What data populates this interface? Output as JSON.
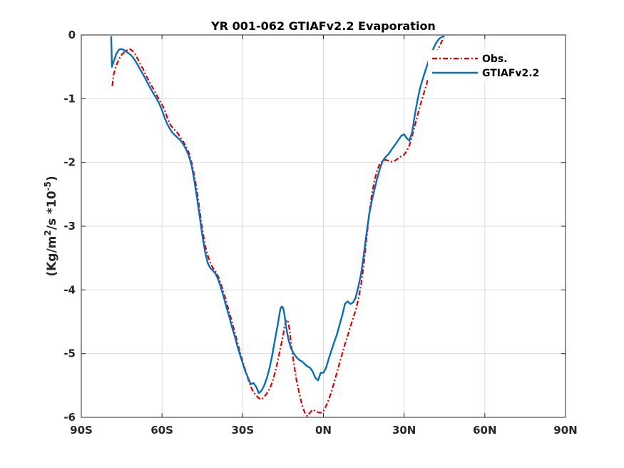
{
  "chart_data": {
    "type": "line",
    "title": "YR 001-062 GTIAFv2.2 Evaporation",
    "xlabel": "",
    "ylabel": {
      "prefix": "(Kg/m",
      "sup1": "2",
      "middle": "/s *10",
      "sup2": "-5",
      "suffix": ")"
    },
    "xlim": [
      -90,
      90
    ],
    "ylim": [
      -6,
      0
    ],
    "xticks": [
      {
        "value": -90,
        "label": "90S"
      },
      {
        "value": -60,
        "label": "60S"
      },
      {
        "value": -30,
        "label": "30S"
      },
      {
        "value": 0,
        "label": "0N"
      },
      {
        "value": 30,
        "label": "30N"
      },
      {
        "value": 60,
        "label": "60N"
      },
      {
        "value": 90,
        "label": "90N"
      }
    ],
    "yticks": [
      {
        "value": 0,
        "label": "0"
      },
      {
        "value": -1,
        "label": "-1"
      },
      {
        "value": -2,
        "label": "-2"
      },
      {
        "value": -3,
        "label": "-3"
      },
      {
        "value": -4,
        "label": "-4"
      },
      {
        "value": -5,
        "label": "-5"
      },
      {
        "value": -6,
        "label": "-6"
      }
    ],
    "grid": true,
    "legend_position": "top-right",
    "series": [
      {
        "name": "Obs.",
        "color": "#d90000",
        "style": "dash-dot",
        "points": [
          [
            -78.5,
            -0.8
          ],
          [
            -78.0,
            -0.62
          ],
          [
            -77.0,
            -0.48
          ],
          [
            -76.0,
            -0.38
          ],
          [
            -75.0,
            -0.31
          ],
          [
            -74.0,
            -0.27
          ],
          [
            -73.0,
            -0.24
          ],
          [
            -72.0,
            -0.22
          ],
          [
            -71.0,
            -0.25
          ],
          [
            -70.0,
            -0.3
          ],
          [
            -69.0,
            -0.38
          ],
          [
            -68.0,
            -0.46
          ],
          [
            -67.0,
            -0.54
          ],
          [
            -66.0,
            -0.63
          ],
          [
            -65.0,
            -0.71
          ],
          [
            -64.0,
            -0.79
          ],
          [
            -63.0,
            -0.86
          ],
          [
            -62.0,
            -0.94
          ],
          [
            -61.0,
            -1.02
          ],
          [
            -60.0,
            -1.09
          ],
          [
            -59.0,
            -1.18
          ],
          [
            -58.0,
            -1.3
          ],
          [
            -57.0,
            -1.4
          ],
          [
            -56.0,
            -1.46
          ],
          [
            -55.0,
            -1.5
          ],
          [
            -54.0,
            -1.55
          ],
          [
            -53.0,
            -1.62
          ],
          [
            -52.0,
            -1.68
          ],
          [
            -51.0,
            -1.76
          ],
          [
            -50.0,
            -1.85
          ],
          [
            -49.0,
            -2.0
          ],
          [
            -48.0,
            -2.2
          ],
          [
            -47.0,
            -2.45
          ],
          [
            -46.0,
            -2.75
          ],
          [
            -45.0,
            -3.05
          ],
          [
            -44.0,
            -3.3
          ],
          [
            -43.0,
            -3.46
          ],
          [
            -42.0,
            -3.58
          ],
          [
            -41.0,
            -3.66
          ],
          [
            -40.0,
            -3.72
          ],
          [
            -39.0,
            -3.8
          ],
          [
            -38.0,
            -3.92
          ],
          [
            -37.0,
            -4.05
          ],
          [
            -36.0,
            -4.2
          ],
          [
            -35.0,
            -4.35
          ],
          [
            -34.0,
            -4.5
          ],
          [
            -33.0,
            -4.66
          ],
          [
            -32.0,
            -4.82
          ],
          [
            -31.0,
            -4.98
          ],
          [
            -30.0,
            -5.12
          ],
          [
            -29.0,
            -5.26
          ],
          [
            -28.0,
            -5.4
          ],
          [
            -27.0,
            -5.52
          ],
          [
            -26.0,
            -5.6
          ],
          [
            -25.0,
            -5.66
          ],
          [
            -24.0,
            -5.7
          ],
          [
            -23.0,
            -5.72
          ],
          [
            -22.0,
            -5.68
          ],
          [
            -21.0,
            -5.62
          ],
          [
            -20.0,
            -5.55
          ],
          [
            -19.0,
            -5.45
          ],
          [
            -18.0,
            -5.3
          ],
          [
            -17.0,
            -5.12
          ],
          [
            -16.0,
            -4.92
          ],
          [
            -15.0,
            -4.72
          ],
          [
            -14.5,
            -4.58
          ],
          [
            -14.0,
            -4.5
          ],
          [
            -13.5,
            -4.47
          ],
          [
            -13.0,
            -4.52
          ],
          [
            -12.5,
            -4.65
          ],
          [
            -12.0,
            -4.85
          ],
          [
            -11.0,
            -5.15
          ],
          [
            -10.0,
            -5.42
          ],
          [
            -9.0,
            -5.62
          ],
          [
            -8.0,
            -5.8
          ],
          [
            -7.0,
            -5.92
          ],
          [
            -6.0,
            -5.98
          ],
          [
            -5.0,
            -5.93
          ],
          [
            -4.0,
            -5.88
          ],
          [
            -3.0,
            -5.9
          ],
          [
            -2.0,
            -5.92
          ],
          [
            -1.0,
            -5.93
          ],
          [
            0.0,
            -5.9
          ],
          [
            1.0,
            -5.82
          ],
          [
            2.0,
            -5.72
          ],
          [
            3.0,
            -5.6
          ],
          [
            4.0,
            -5.45
          ],
          [
            5.0,
            -5.3
          ],
          [
            6.0,
            -5.15
          ],
          [
            7.0,
            -5.0
          ],
          [
            8.0,
            -4.85
          ],
          [
            9.0,
            -4.72
          ],
          [
            10.0,
            -4.58
          ],
          [
            11.0,
            -4.45
          ],
          [
            12.0,
            -4.32
          ],
          [
            13.0,
            -4.15
          ],
          [
            14.0,
            -3.92
          ],
          [
            15.0,
            -3.6
          ],
          [
            16.0,
            -3.2
          ],
          [
            17.0,
            -2.82
          ],
          [
            18.0,
            -2.5
          ],
          [
            19.0,
            -2.28
          ],
          [
            20.0,
            -2.12
          ],
          [
            21.0,
            -2.02
          ],
          [
            22.0,
            -1.98
          ],
          [
            23.0,
            -1.96
          ],
          [
            24.0,
            -1.97
          ],
          [
            25.0,
            -1.99
          ],
          [
            26.0,
            -1.99
          ],
          [
            27.0,
            -1.96
          ],
          [
            28.0,
            -1.93
          ],
          [
            29.0,
            -1.9
          ],
          [
            30.0,
            -1.88
          ],
          [
            31.0,
            -1.82
          ],
          [
            32.0,
            -1.73
          ],
          [
            33.0,
            -1.58
          ],
          [
            34.0,
            -1.42
          ],
          [
            35.0,
            -1.26
          ],
          [
            36.0,
            -1.1
          ],
          [
            37.0,
            -0.96
          ],
          [
            38.0,
            -0.82
          ],
          [
            39.0,
            -0.68
          ],
          [
            40.0,
            -0.55
          ],
          [
            41.0,
            -0.42
          ],
          [
            42.0,
            -0.3
          ],
          [
            43.0,
            -0.19
          ],
          [
            44.0,
            -0.1
          ],
          [
            45.0,
            -0.05
          ]
        ]
      },
      {
        "name": "GTIAFv2.2",
        "color": "#0a6eb4",
        "style": "solid",
        "points": [
          [
            -78.9,
            -0.02
          ],
          [
            -78.6,
            -0.5
          ],
          [
            -78.0,
            -0.42
          ],
          [
            -77.0,
            -0.3
          ],
          [
            -76.0,
            -0.23
          ],
          [
            -75.0,
            -0.22
          ],
          [
            -74.0,
            -0.24
          ],
          [
            -73.0,
            -0.27
          ],
          [
            -72.0,
            -0.3
          ],
          [
            -71.0,
            -0.34
          ],
          [
            -70.0,
            -0.4
          ],
          [
            -69.0,
            -0.47
          ],
          [
            -68.0,
            -0.55
          ],
          [
            -67.0,
            -0.62
          ],
          [
            -66.0,
            -0.7
          ],
          [
            -65.0,
            -0.78
          ],
          [
            -64.0,
            -0.86
          ],
          [
            -63.0,
            -0.93
          ],
          [
            -62.0,
            -1.0
          ],
          [
            -61.0,
            -1.08
          ],
          [
            -60.0,
            -1.18
          ],
          [
            -59.0,
            -1.3
          ],
          [
            -58.0,
            -1.4
          ],
          [
            -57.0,
            -1.48
          ],
          [
            -56.0,
            -1.54
          ],
          [
            -55.0,
            -1.58
          ],
          [
            -54.0,
            -1.62
          ],
          [
            -53.0,
            -1.66
          ],
          [
            -52.0,
            -1.72
          ],
          [
            -51.0,
            -1.8
          ],
          [
            -50.0,
            -1.9
          ],
          [
            -49.0,
            -2.05
          ],
          [
            -48.0,
            -2.28
          ],
          [
            -47.0,
            -2.55
          ],
          [
            -46.0,
            -2.85
          ],
          [
            -45.0,
            -3.15
          ],
          [
            -44.0,
            -3.4
          ],
          [
            -43.0,
            -3.58
          ],
          [
            -42.0,
            -3.66
          ],
          [
            -41.0,
            -3.7
          ],
          [
            -40.0,
            -3.75
          ],
          [
            -39.0,
            -3.85
          ],
          [
            -38.0,
            -3.98
          ],
          [
            -37.0,
            -4.12
          ],
          [
            -36.0,
            -4.28
          ],
          [
            -35.0,
            -4.42
          ],
          [
            -34.0,
            -4.58
          ],
          [
            -33.0,
            -4.72
          ],
          [
            -32.0,
            -4.88
          ],
          [
            -31.0,
            -5.02
          ],
          [
            -30.0,
            -5.15
          ],
          [
            -29.0,
            -5.28
          ],
          [
            -28.0,
            -5.38
          ],
          [
            -27.0,
            -5.48
          ],
          [
            -26.0,
            -5.46
          ],
          [
            -25.0,
            -5.52
          ],
          [
            -24.0,
            -5.62
          ],
          [
            -23.0,
            -5.58
          ],
          [
            -22.0,
            -5.5
          ],
          [
            -21.0,
            -5.38
          ],
          [
            -20.0,
            -5.22
          ],
          [
            -19.0,
            -5.02
          ],
          [
            -18.0,
            -4.78
          ],
          [
            -17.0,
            -4.55
          ],
          [
            -16.5,
            -4.42
          ],
          [
            -16.0,
            -4.3
          ],
          [
            -15.5,
            -4.26
          ],
          [
            -15.0,
            -4.28
          ],
          [
            -14.5,
            -4.38
          ],
          [
            -14.0,
            -4.55
          ],
          [
            -13.0,
            -4.78
          ],
          [
            -12.0,
            -4.92
          ],
          [
            -11.0,
            -5.0
          ],
          [
            -10.0,
            -5.06
          ],
          [
            -9.0,
            -5.1
          ],
          [
            -8.0,
            -5.12
          ],
          [
            -7.0,
            -5.16
          ],
          [
            -6.0,
            -5.2
          ],
          [
            -5.0,
            -5.22
          ],
          [
            -4.0,
            -5.28
          ],
          [
            -3.0,
            -5.38
          ],
          [
            -2.0,
            -5.42
          ],
          [
            -1.0,
            -5.3
          ],
          [
            0.0,
            -5.3
          ],
          [
            1.0,
            -5.22
          ],
          [
            2.0,
            -5.08
          ],
          [
            3.0,
            -4.95
          ],
          [
            4.0,
            -4.82
          ],
          [
            5.0,
            -4.7
          ],
          [
            6.0,
            -4.55
          ],
          [
            7.0,
            -4.4
          ],
          [
            8.0,
            -4.22
          ],
          [
            9.0,
            -4.18
          ],
          [
            10.0,
            -4.22
          ],
          [
            11.0,
            -4.2
          ],
          [
            12.0,
            -4.12
          ],
          [
            13.0,
            -3.95
          ],
          [
            14.0,
            -3.75
          ],
          [
            15.0,
            -3.45
          ],
          [
            16.0,
            -3.12
          ],
          [
            17.0,
            -2.82
          ],
          [
            18.0,
            -2.6
          ],
          [
            19.0,
            -2.42
          ],
          [
            20.0,
            -2.25
          ],
          [
            21.0,
            -2.1
          ],
          [
            22.0,
            -1.98
          ],
          [
            23.0,
            -1.92
          ],
          [
            24.0,
            -1.88
          ],
          [
            25.0,
            -1.82
          ],
          [
            26.0,
            -1.76
          ],
          [
            27.0,
            -1.7
          ],
          [
            28.0,
            -1.64
          ],
          [
            29.0,
            -1.58
          ],
          [
            30.0,
            -1.56
          ],
          [
            31.0,
            -1.62
          ],
          [
            32.0,
            -1.66
          ],
          [
            33.0,
            -1.52
          ],
          [
            34.0,
            -1.25
          ],
          [
            35.0,
            -1.02
          ],
          [
            36.0,
            -0.82
          ],
          [
            37.0,
            -0.68
          ],
          [
            38.0,
            -0.55
          ],
          [
            39.0,
            -0.42
          ],
          [
            40.0,
            -0.3
          ],
          [
            41.0,
            -0.2
          ],
          [
            42.0,
            -0.12
          ],
          [
            43.0,
            -0.06
          ],
          [
            44.0,
            -0.03
          ],
          [
            45.0,
            -0.02
          ]
        ]
      }
    ]
  }
}
